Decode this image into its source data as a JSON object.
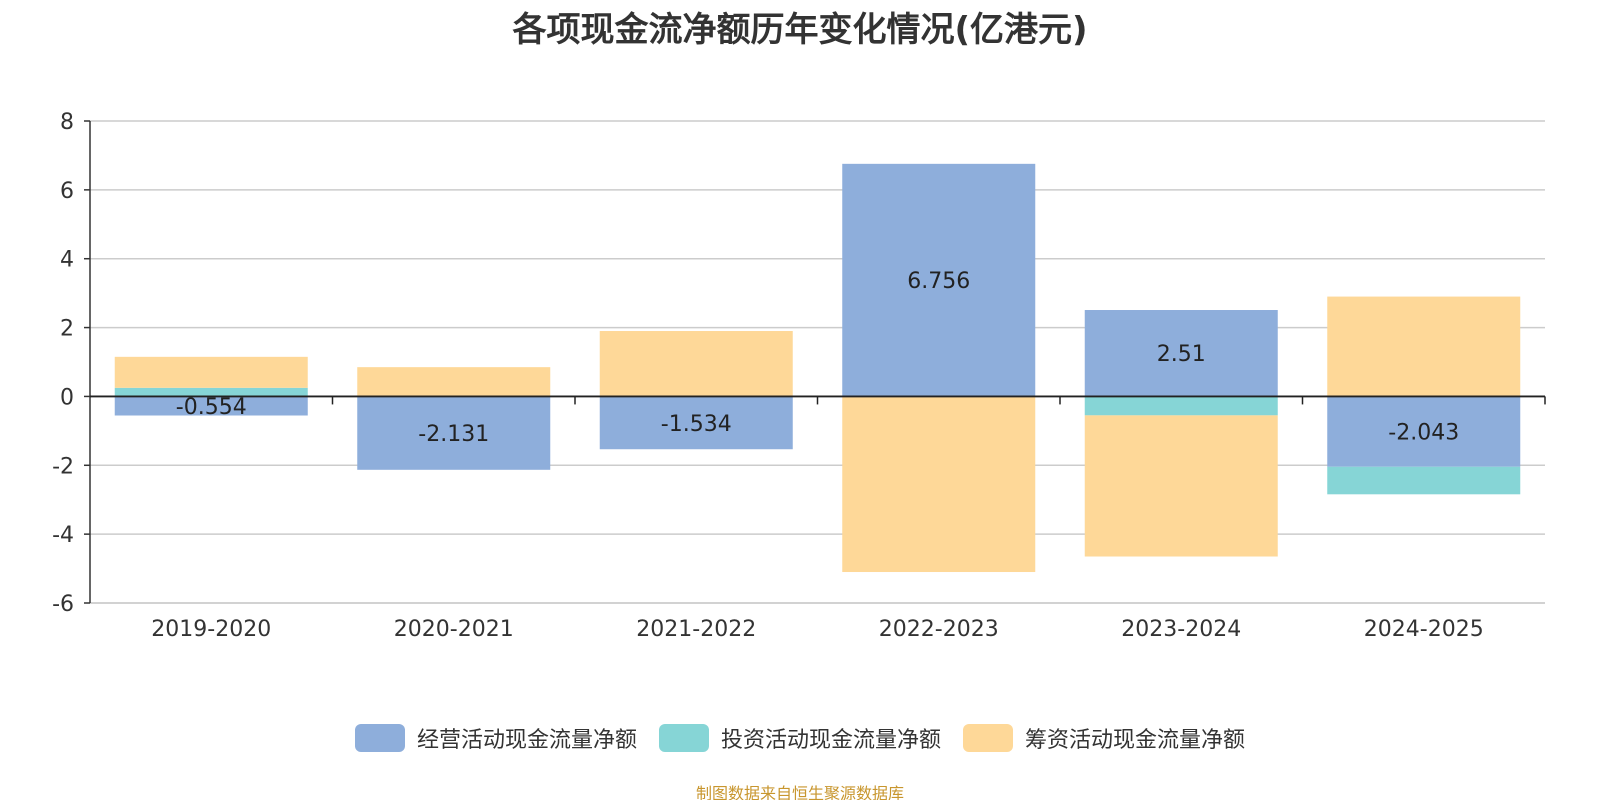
{
  "chart_data": {
    "type": "bar",
    "stacked": true,
    "title": "各项现金流净额历年变化情况(亿港元)",
    "categories": [
      "2019-2020",
      "2020-2021",
      "2021-2022",
      "2022-2023",
      "2023-2024",
      "2024-2025"
    ],
    "series": [
      {
        "name": "经营活动现金流量净额",
        "color": "#8eaedb",
        "values": [
          -0.554,
          -2.131,
          -1.534,
          6.756,
          2.51,
          -2.043
        ],
        "labels": [
          "-0.554",
          "-2.131",
          "-1.534",
          "6.756",
          "2.51",
          "-2.043"
        ]
      },
      {
        "name": "投资活动现金流量净额",
        "color": "#86d5d6",
        "values": [
          0.25,
          0.0,
          0.0,
          0.0,
          -0.55,
          -0.8
        ]
      },
      {
        "name": "筹资活动现金流量净额",
        "color": "#fed898",
        "values": [
          0.9,
          0.85,
          1.9,
          -5.1,
          -4.1,
          2.9
        ]
      }
    ],
    "ylim": [
      -6,
      8
    ],
    "yticks": [
      -6,
      -4,
      -2,
      0,
      2,
      4,
      6,
      8
    ],
    "grid": true,
    "legend_position": "bottom",
    "xlabel": "",
    "ylabel": ""
  },
  "footer": {
    "source": "制图数据来自恒生聚源数据库"
  }
}
